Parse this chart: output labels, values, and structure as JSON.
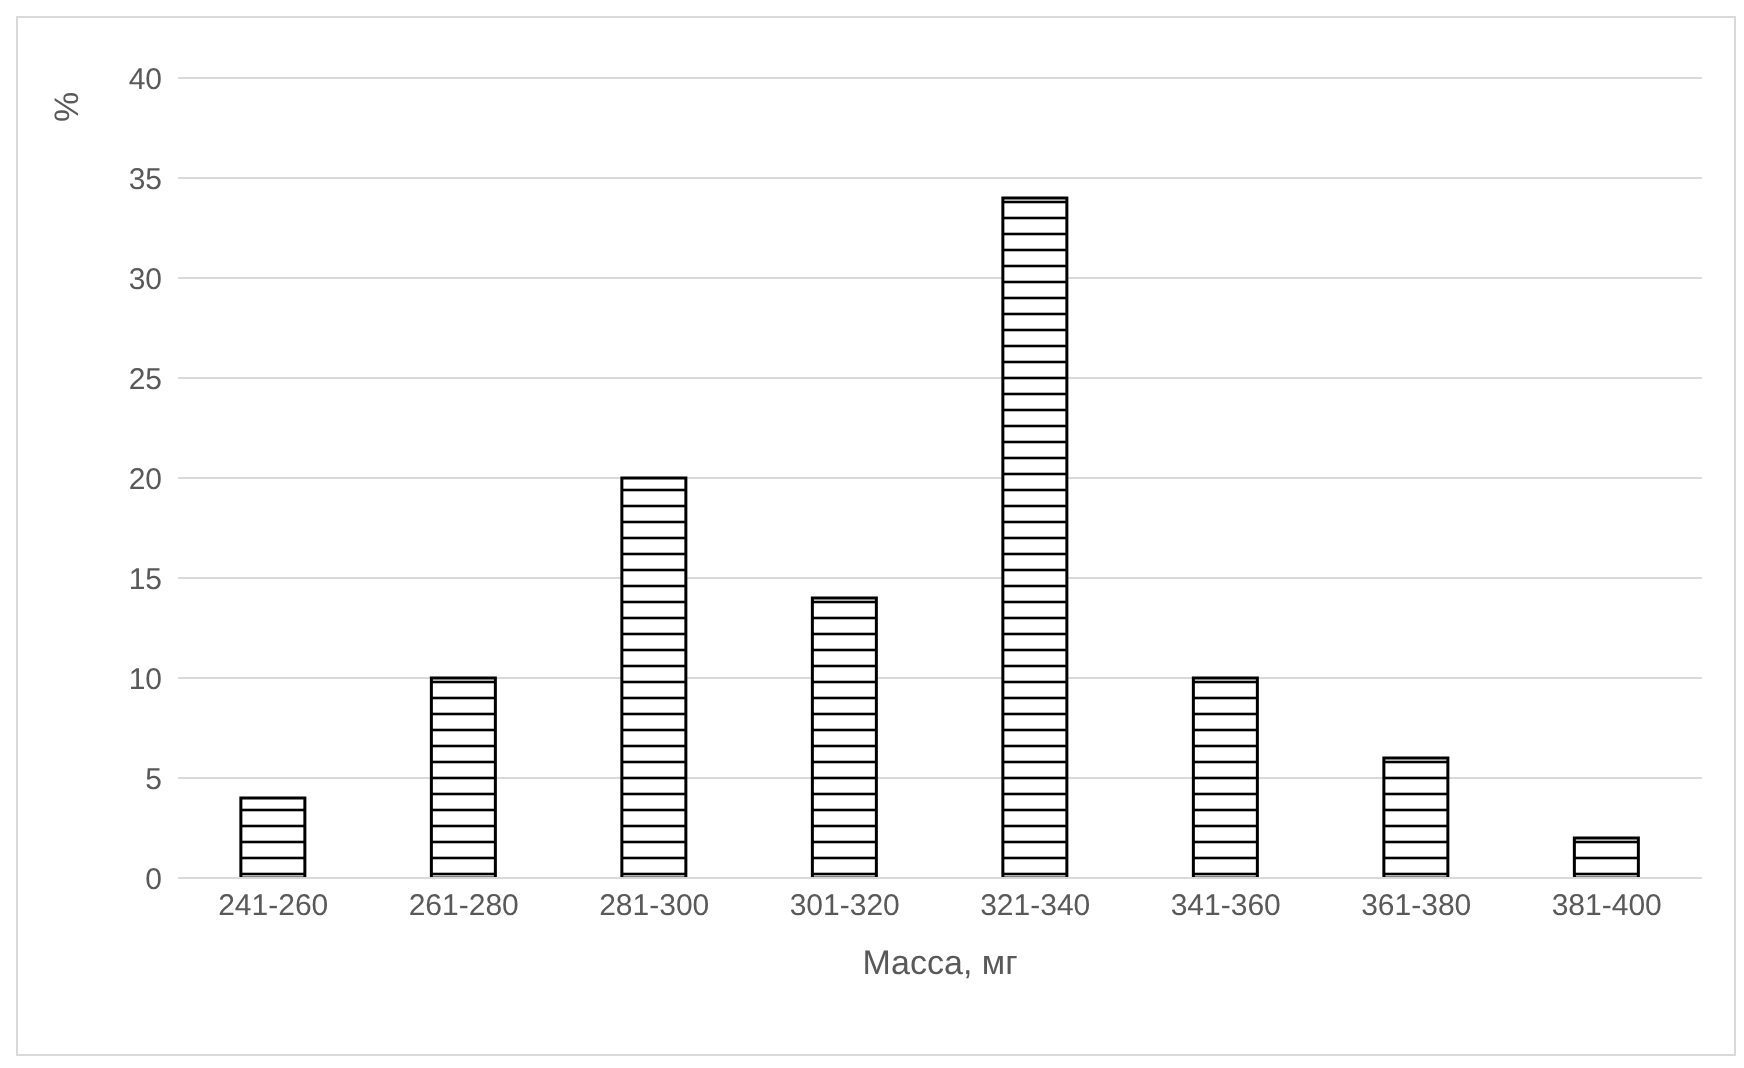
{
  "chart_data": {
    "type": "bar",
    "xlabel": "Масса, мг",
    "ylabel": "%",
    "categories": [
      "241-260",
      "261-280",
      "281-300",
      "301-320",
      "321-340",
      "341-360",
      "361-380",
      "381-400"
    ],
    "values": [
      4,
      10,
      20,
      14,
      34,
      10,
      6,
      2
    ],
    "color": "#000000",
    "ylim": [
      0,
      40
    ],
    "yticks": [
      0,
      5,
      10,
      15,
      20,
      25,
      30,
      35,
      40
    ],
    "grid": "y"
  }
}
